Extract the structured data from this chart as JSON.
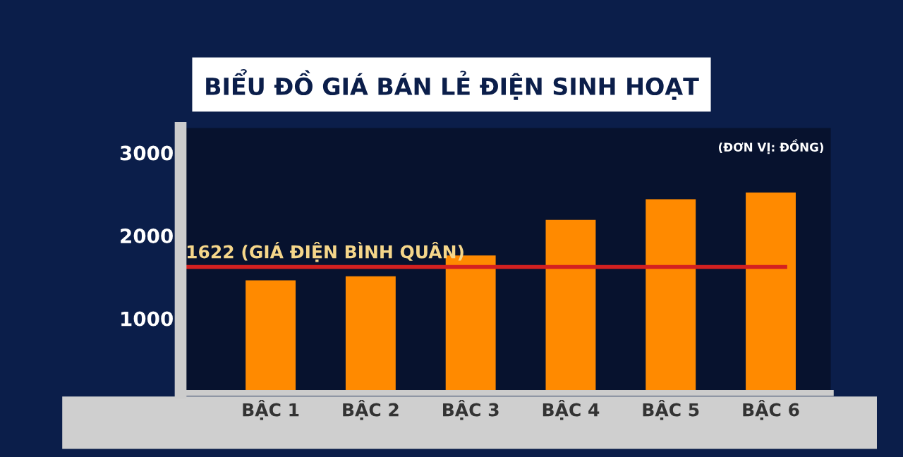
{
  "chart_data": {
    "type": "bar",
    "title": "BIỂU ĐỒ GIÁ BÁN LẺ ĐIỆN SINH HOẠT",
    "categories": [
      "BẬC 1",
      "BẬC 2",
      "BẬC 3",
      "BẬC 4",
      "BẬC 5",
      "BẬC 6"
    ],
    "values": [
      1460,
      1510,
      1760,
      2190,
      2440,
      2520
    ],
    "color": "#ff8a00",
    "ylim": [
      100,
      3300
    ],
    "yticks": [
      1000,
      2000,
      3000
    ],
    "ref_lines": [
      {
        "axis": "y",
        "value": 1622,
        "label": "1622 (GIÁ ĐIỆN BÌNH QUÂN)",
        "color": "#d42020"
      }
    ],
    "annotations": [
      "(ĐƠN VỊ: ĐỒNG)"
    ],
    "grid": false
  }
}
